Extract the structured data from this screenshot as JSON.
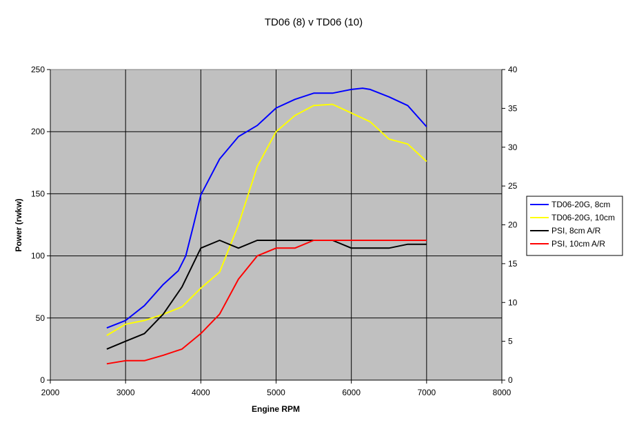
{
  "chart_data": {
    "type": "line",
    "title": "TD06 (8) v TD06 (10)",
    "xlabel": "Engine RPM",
    "ylabel": "Power (rwkw)",
    "y2label": "",
    "xlim": [
      2000,
      8000
    ],
    "ylim": [
      0,
      250
    ],
    "y2lim": [
      0,
      40
    ],
    "x_ticks": [
      2000,
      3000,
      4000,
      5000,
      6000,
      7000,
      8000
    ],
    "y_ticks": [
      0,
      50,
      100,
      150,
      200,
      250
    ],
    "y2_ticks": [
      0,
      5,
      10,
      15,
      20,
      25,
      30,
      35,
      40
    ],
    "grid": true,
    "legend_position": "right",
    "plot_background": "#c0c0c0",
    "series": [
      {
        "name": "TD06-20G, 8cm",
        "axis": "left",
        "color": "#0000ff",
        "x": [
          2750,
          3000,
          3250,
          3500,
          3700,
          3800,
          3900,
          4000,
          4250,
          4500,
          4750,
          5000,
          5250,
          5500,
          5750,
          6000,
          6150,
          6250,
          6500,
          6750,
          7000
        ],
        "y": [
          42,
          48,
          60,
          77,
          88,
          100,
          124,
          149,
          178,
          196,
          205,
          219,
          226,
          231,
          231,
          234,
          235,
          234,
          228,
          221,
          204
        ]
      },
      {
        "name": "TD06-20G, 10cm",
        "axis": "left",
        "color": "#ffff00",
        "x": [
          2750,
          3000,
          3250,
          3500,
          3750,
          4000,
          4250,
          4500,
          4750,
          5000,
          5250,
          5500,
          5750,
          6000,
          6250,
          6500,
          6750,
          7000
        ],
        "y": [
          36,
          45,
          48,
          53,
          59,
          74,
          87,
          125,
          172,
          200,
          213,
          221,
          222,
          215,
          208,
          194,
          190,
          176
        ]
      },
      {
        "name": "PSI, 8cm A/R",
        "axis": "right",
        "color": "#000000",
        "x": [
          2750,
          3000,
          3250,
          3500,
          3750,
          4000,
          4250,
          4500,
          4750,
          5000,
          5250,
          5500,
          5750,
          6000,
          6250,
          6500,
          6750,
          7000
        ],
        "y": [
          4,
          5,
          6,
          8.5,
          12,
          17,
          18,
          17,
          18,
          18,
          18,
          18,
          18,
          17,
          17,
          17,
          17.5,
          17.5
        ]
      },
      {
        "name": "PSI, 10cm A/R",
        "axis": "right",
        "color": "#ff0000",
        "x": [
          2750,
          3000,
          3250,
          3500,
          3750,
          4000,
          4250,
          4500,
          4750,
          5000,
          5250,
          5500,
          5750,
          6000,
          6250,
          6500,
          6750,
          7000
        ],
        "y": [
          2.1,
          2.5,
          2.5,
          3.2,
          4,
          6,
          8.5,
          13,
          16,
          17,
          17,
          18,
          18,
          18,
          18,
          18,
          18,
          18
        ]
      }
    ]
  }
}
